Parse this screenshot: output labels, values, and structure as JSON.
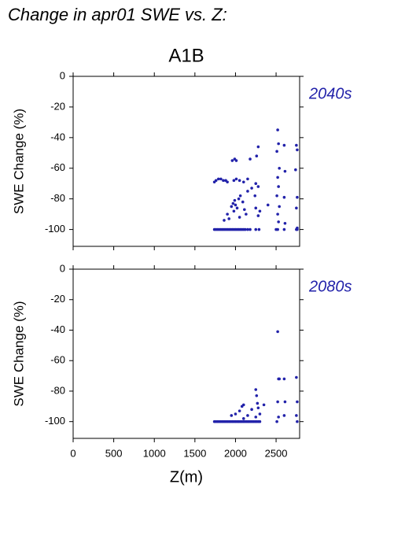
{
  "title": "Change in apr01 SWE vs. Z:",
  "subtitle": "A1B",
  "chart_data": [
    {
      "type": "scatter",
      "annotation": "2040s",
      "y_label": "SWE Change (%)",
      "color": "#2222aa",
      "xlim": [
        0,
        2790
      ],
      "xticks": [
        0,
        500,
        1000,
        1500,
        2000,
        2500
      ],
      "show_xtick_labels": false,
      "ylim": [
        -111,
        0
      ],
      "yticks": [
        0,
        -20,
        -40,
        -60,
        -80,
        -100
      ],
      "x": [
        1740,
        1760,
        1780,
        1800,
        1820,
        1840,
        1860,
        1880,
        1900,
        1920,
        1940,
        1960,
        1980,
        2000,
        2020,
        2040,
        2060,
        2080,
        2100,
        2120,
        2150,
        2180,
        2250,
        2290,
        2500,
        2520,
        2600,
        2750,
        2760,
        1740,
        1760,
        1790,
        1820,
        1850,
        1880,
        1900,
        1980,
        2010,
        2050,
        2100,
        2150,
        2250,
        2280,
        1960,
        1990,
        2010,
        2180,
        2260,
        2280,
        1950,
        1970,
        1990,
        2000,
        2020,
        1980,
        2040,
        2060,
        2090,
        2110,
        2130,
        1900,
        1920,
        1860,
        2050,
        2150,
        2200,
        2240,
        2250,
        2280,
        2300,
        2400,
        2520,
        2530,
        2510,
        2540,
        2520,
        2530,
        2510,
        2540,
        2520,
        2530,
        2600,
        2610,
        2600,
        2610,
        2750,
        2760,
        2740,
        2760,
        2750,
        2760
      ],
      "values": [
        -100,
        -100,
        -100,
        -100,
        -100,
        -100,
        -100,
        -100,
        -100,
        -100,
        -100,
        -100,
        -100,
        -100,
        -100,
        -100,
        -100,
        -100,
        -100,
        -100,
        -100,
        -100,
        -100,
        -100,
        -100,
        -100,
        -100,
        -100,
        -100,
        -69,
        -68,
        -67,
        -67,
        -68,
        -68,
        -69,
        -68,
        -67,
        -68,
        -69,
        -67,
        -70,
        -72,
        -55,
        -54,
        -55,
        -54,
        -52,
        -46,
        -85,
        -83,
        -81,
        -84,
        -86,
        -88,
        -80,
        -78,
        -82,
        -87,
        -90,
        -90,
        -93,
        -94,
        -92,
        -75,
        -73,
        -78,
        -86,
        -91,
        -88,
        -84,
        -35,
        -44,
        -49,
        -60,
        -66,
        -72,
        -78,
        -85,
        -90,
        -95,
        -45,
        -62,
        -79,
        -96,
        -45,
        -48,
        -61,
        -79,
        -86,
        -99
      ]
    },
    {
      "type": "scatter",
      "annotation": "2080s",
      "y_label": "SWE Change (%)",
      "x_label": "Z(m)",
      "color": "#2222aa",
      "xlim": [
        0,
        2790
      ],
      "xticks": [
        0,
        500,
        1000,
        1500,
        2000,
        2500
      ],
      "show_xtick_labels": true,
      "ylim": [
        -111,
        0
      ],
      "yticks": [
        0,
        -20,
        -40,
        -60,
        -80,
        -100
      ],
      "x": [
        1740,
        1760,
        1780,
        1800,
        1820,
        1840,
        1860,
        1880,
        1900,
        1920,
        1940,
        1960,
        1980,
        2000,
        2020,
        2040,
        2060,
        2080,
        2100,
        2120,
        2140,
        2160,
        2180,
        2200,
        2220,
        2240,
        2260,
        2280,
        2300,
        2520,
        2530,
        2540,
        2520,
        2530,
        2510,
        2600,
        2610,
        2600,
        2750,
        2760,
        2750,
        2760,
        1950,
        2000,
        2050,
        2080,
        2100,
        2150,
        2200,
        2250,
        2260,
        2270,
        2280,
        2300,
        2350,
        2250,
        2100
      ],
      "values": [
        -100,
        -100,
        -100,
        -100,
        -100,
        -100,
        -100,
        -100,
        -100,
        -100,
        -100,
        -100,
        -100,
        -100,
        -100,
        -100,
        -100,
        -100,
        -100,
        -100,
        -100,
        -100,
        -100,
        -100,
        -100,
        -100,
        -100,
        -100,
        -100,
        -41,
        -72,
        -72,
        -87,
        -97,
        -100,
        -72,
        -87,
        -96,
        -71,
        -87,
        -96,
        -100,
        -96,
        -95,
        -93,
        -90,
        -98,
        -96,
        -92,
        -79,
        -83,
        -88,
        -91,
        -95,
        -89,
        -97,
        -89
      ]
    }
  ]
}
